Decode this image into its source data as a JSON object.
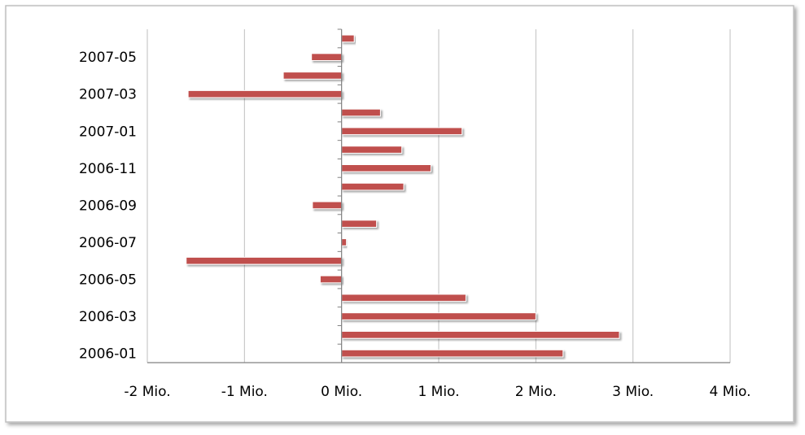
{
  "chart_data": {
    "type": "bar",
    "orientation": "horizontal",
    "title": "",
    "xlabel": "",
    "ylabel": "",
    "categories": [
      "2006-01",
      "2006-02",
      "2006-03",
      "2006-04",
      "2006-05",
      "2006-06",
      "2006-07",
      "2006-08",
      "2006-09",
      "2006-10",
      "2006-11",
      "2006-12",
      "2007-01",
      "2007-02",
      "2007-03",
      "2007-04",
      "2007-05",
      "2007-06"
    ],
    "category_tick_labels": [
      "2006-01",
      "2006-03",
      "2006-05",
      "2006-07",
      "2006-09",
      "2006-11",
      "2007-01",
      "2007-03",
      "2007-05"
    ],
    "values": [
      2280000,
      2860000,
      2000000,
      1280000,
      -220000,
      -1600000,
      50000,
      360000,
      -300000,
      640000,
      920000,
      620000,
      1240000,
      400000,
      -1580000,
      -600000,
      -310000,
      130000
    ],
    "xlim": [
      -2000000,
      4000000
    ],
    "x_ticks": [
      -2000000,
      -1000000,
      0,
      1000000,
      2000000,
      3000000,
      4000000
    ],
    "x_tick_labels": [
      "-2 Mio.",
      "-1 Mio.",
      "0 Mio.",
      "1 Mio.",
      "2 Mio.",
      "3 Mio.",
      "4 Mio."
    ],
    "grid": "vertical",
    "legend": "none",
    "colors": {
      "bar": "#c0504d",
      "grid": "#bfbfbf",
      "axis": "#808080",
      "border": "#bfbfbf"
    }
  }
}
